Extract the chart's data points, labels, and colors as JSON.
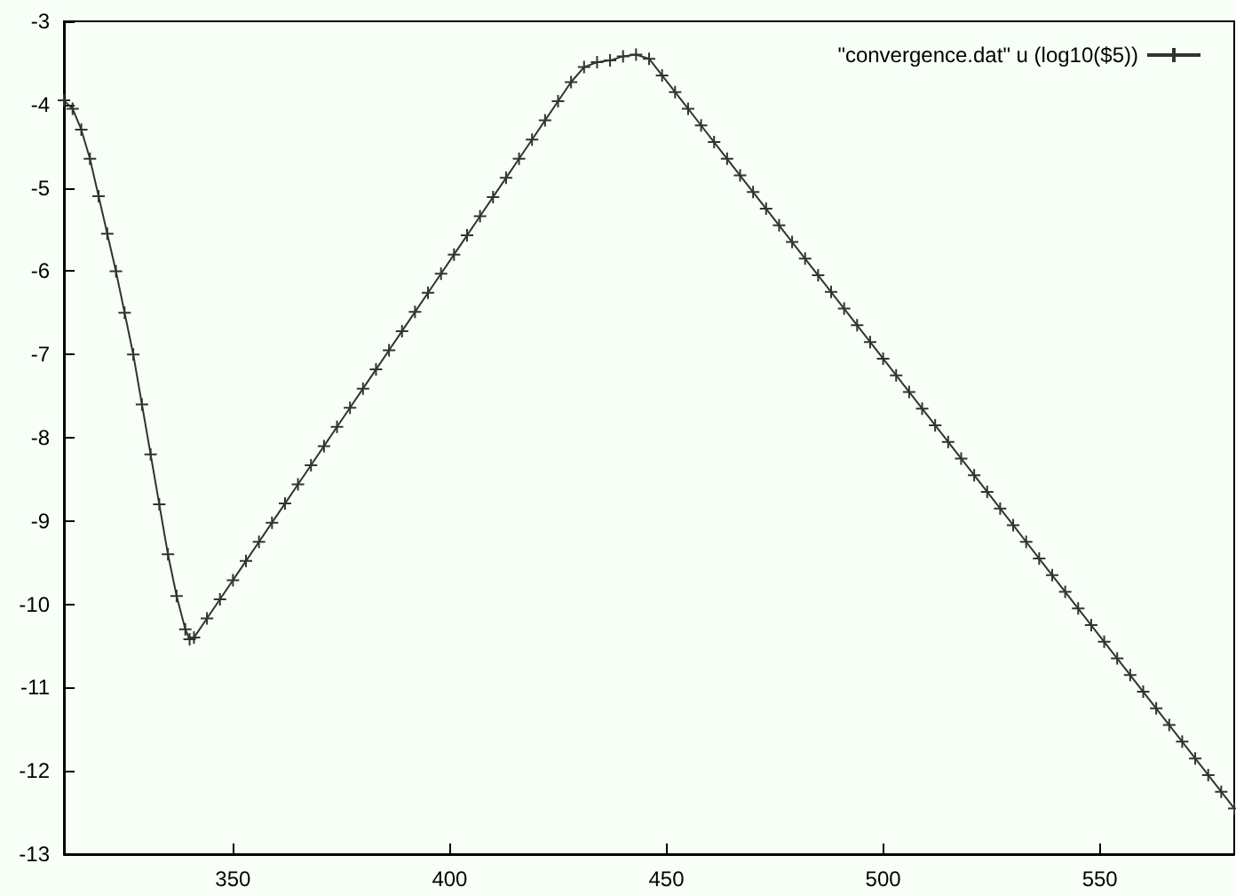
{
  "chart_data": {
    "type": "line",
    "x": [
      311,
      313,
      315,
      317,
      319,
      321,
      323,
      325,
      327,
      329,
      331,
      333,
      335,
      337,
      339,
      340,
      341,
      344,
      347,
      350,
      353,
      356,
      359,
      362,
      365,
      368,
      371,
      374,
      377,
      380,
      383,
      386,
      389,
      392,
      395,
      398,
      401,
      404,
      407,
      410,
      413,
      416,
      419,
      422,
      425,
      428,
      431,
      434,
      437,
      440,
      443,
      446,
      449,
      452,
      455,
      458,
      461,
      464,
      467,
      470,
      473,
      476,
      479,
      482,
      485,
      488,
      491,
      494,
      497,
      500,
      503,
      506,
      509,
      512,
      515,
      518,
      521,
      524,
      527,
      530,
      533,
      536,
      539,
      542,
      545,
      548,
      551,
      554,
      557,
      560,
      563,
      566,
      569,
      572,
      575,
      578,
      581
    ],
    "series": [
      {
        "name": "\"convergence.dat\" u (log10($5))",
        "color": "#333333",
        "values": [
          -3.95,
          -4.05,
          -4.3,
          -4.65,
          -5.1,
          -5.55,
          -6.0,
          -6.5,
          -7.0,
          -7.6,
          -8.2,
          -8.8,
          -9.4,
          -9.9,
          -10.3,
          -10.42,
          -10.4,
          -10.17,
          -9.94,
          -9.71,
          -9.48,
          -9.25,
          -9.02,
          -8.79,
          -8.56,
          -8.33,
          -8.1,
          -7.87,
          -7.64,
          -7.41,
          -7.18,
          -6.95,
          -6.72,
          -6.49,
          -6.26,
          -6.03,
          -5.8,
          -5.57,
          -5.34,
          -5.11,
          -4.88,
          -4.65,
          -4.42,
          -4.19,
          -3.96,
          -3.73,
          -3.55,
          -3.49,
          -3.47,
          -3.42,
          -3.4,
          -3.45,
          -3.65,
          -3.85,
          -4.05,
          -4.25,
          -4.45,
          -4.65,
          -4.85,
          -5.05,
          -5.25,
          -5.45,
          -5.65,
          -5.85,
          -6.05,
          -6.25,
          -6.45,
          -6.65,
          -6.85,
          -7.05,
          -7.25,
          -7.45,
          -7.65,
          -7.85,
          -8.05,
          -8.25,
          -8.45,
          -8.65,
          -8.85,
          -9.05,
          -9.25,
          -9.45,
          -9.65,
          -9.85,
          -10.05,
          -10.25,
          -10.45,
          -10.65,
          -10.85,
          -11.05,
          -11.25,
          -11.45,
          -11.65,
          -11.85,
          -12.05,
          -12.25,
          -12.45
        ]
      }
    ],
    "xlim": [
      311,
      581
    ],
    "xticks": [
      350,
      400,
      450,
      500,
      550
    ],
    "ylim": [
      -13,
      -3
    ],
    "yticks": [
      -13,
      -12,
      -11,
      -10,
      -9,
      -8,
      -7,
      -6,
      -5,
      -4,
      -3
    ],
    "grid": false,
    "legend": "top right",
    "marker": "cross",
    "line_style": "solid"
  }
}
